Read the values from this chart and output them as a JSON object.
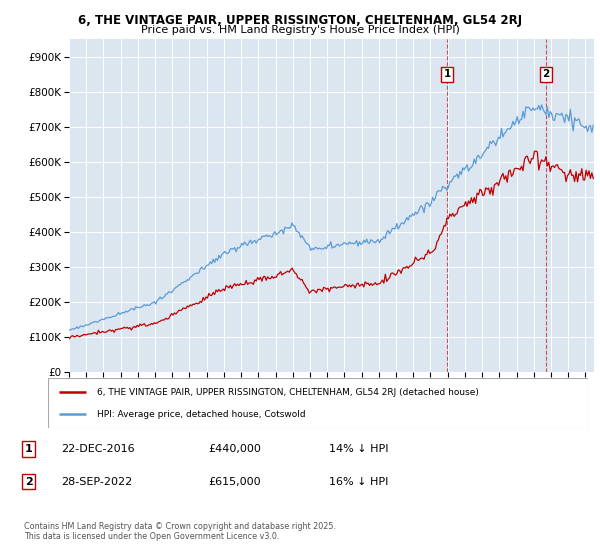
{
  "title1": "6, THE VINTAGE PAIR, UPPER RISSINGTON, CHELTENHAM, GL54 2RJ",
  "title2": "Price paid vs. HM Land Registry's House Price Index (HPI)",
  "ylim": [
    0,
    950000
  ],
  "yticks": [
    0,
    100000,
    200000,
    300000,
    400000,
    500000,
    600000,
    700000,
    800000,
    900000
  ],
  "ytick_labels": [
    "£0",
    "£100K",
    "£200K",
    "£300K",
    "£400K",
    "£500K",
    "£600K",
    "£700K",
    "£800K",
    "£900K"
  ],
  "hpi_color": "#5b9bd5",
  "price_color": "#c00000",
  "dashed_color": "#c00000",
  "bg_color": "#ffffff",
  "plot_bg_color": "#dce6f1",
  "grid_color": "#ffffff",
  "annotation1_year": 2016,
  "annotation1_month": 12,
  "annotation1_price": 440000,
  "annotation2_year": 2022,
  "annotation2_month": 9,
  "annotation2_price": 615000,
  "legend_line1": "6, THE VINTAGE PAIR, UPPER RISSINGTON, CHELTENHAM, GL54 2RJ (detached house)",
  "legend_line2": "HPI: Average price, detached house, Cotswold",
  "ann1_date_str": "22-DEC-2016",
  "ann1_price_str": "£440,000",
  "ann1_pct_str": "14% ↓ HPI",
  "ann2_date_str": "28-SEP-2022",
  "ann2_price_str": "£615,000",
  "ann2_pct_str": "16% ↓ HPI",
  "footer": "Contains HM Land Registry data © Crown copyright and database right 2025.\nThis data is licensed under the Open Government Licence v3.0."
}
